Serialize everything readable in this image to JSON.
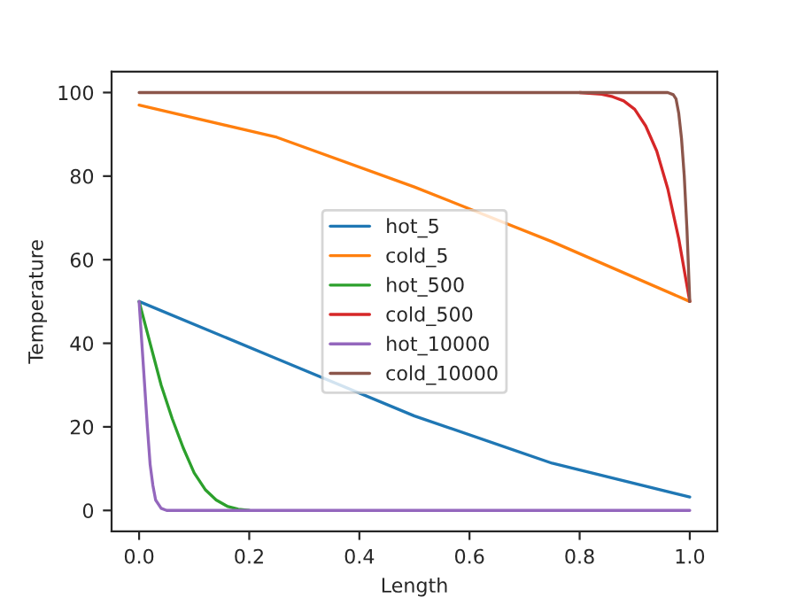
{
  "chart_data": {
    "type": "line",
    "xlabel": "Length",
    "ylabel": "Temperature",
    "xlim": [
      -0.05,
      1.05
    ],
    "ylim": [
      -5,
      105
    ],
    "xticks": [
      {
        "value": 0,
        "label": "0.0"
      },
      0.2,
      0.4,
      0.6,
      0.8,
      {
        "value": 1,
        "label": "1.0"
      }
    ],
    "yticks": [
      0,
      20,
      40,
      60,
      80,
      100
    ],
    "grid": false,
    "legend": "center",
    "marker": "none",
    "line_style": "solid",
    "series": [
      {
        "name": "hot_5",
        "color": "#1f77b4",
        "x": [
          0,
          0.25,
          0.5,
          0.75,
          1
        ],
        "values": [
          50,
          36.3,
          22.6,
          11.3,
          3.2
        ]
      },
      {
        "name": "cold_5",
        "color": "#ff7f0e",
        "x": [
          0,
          0.25,
          0.5,
          0.75,
          1
        ],
        "values": [
          97,
          89.3,
          77.4,
          64.3,
          50
        ]
      },
      {
        "name": "hot_500",
        "color": "#2ca02c",
        "x": [
          0,
          0.02,
          0.04,
          0.06,
          0.08,
          0.1,
          0.12,
          0.14,
          0.16,
          0.18,
          0.2
        ],
        "values": [
          50,
          40,
          30,
          22,
          15,
          9,
          5,
          2.5,
          1,
          0.3,
          0
        ]
      },
      {
        "name": "cold_500",
        "color": "#d62728",
        "x": [
          0.8,
          0.84,
          0.86,
          0.88,
          0.9,
          0.92,
          0.94,
          0.96,
          0.98,
          1
        ],
        "values": [
          100,
          99.6,
          99,
          98,
          96,
          92,
          86,
          77,
          65,
          50
        ]
      },
      {
        "name": "hot_10000",
        "color": "#9467bd",
        "x": [
          0,
          0.005,
          0.01,
          0.015,
          0.02,
          0.025,
          0.03,
          0.04,
          0.05,
          1
        ],
        "values": [
          50,
          40,
          30,
          20,
          11,
          6,
          2.5,
          0.5,
          0,
          0
        ]
      },
      {
        "name": "cold_10000",
        "color": "#8c564b",
        "x": [
          0,
          0.95,
          0.96,
          0.97,
          0.975,
          0.98,
          0.985,
          0.99,
          0.995,
          1
        ],
        "values": [
          100,
          100,
          100,
          99.5,
          98.5,
          95,
          89,
          80,
          67,
          50
        ]
      }
    ]
  }
}
